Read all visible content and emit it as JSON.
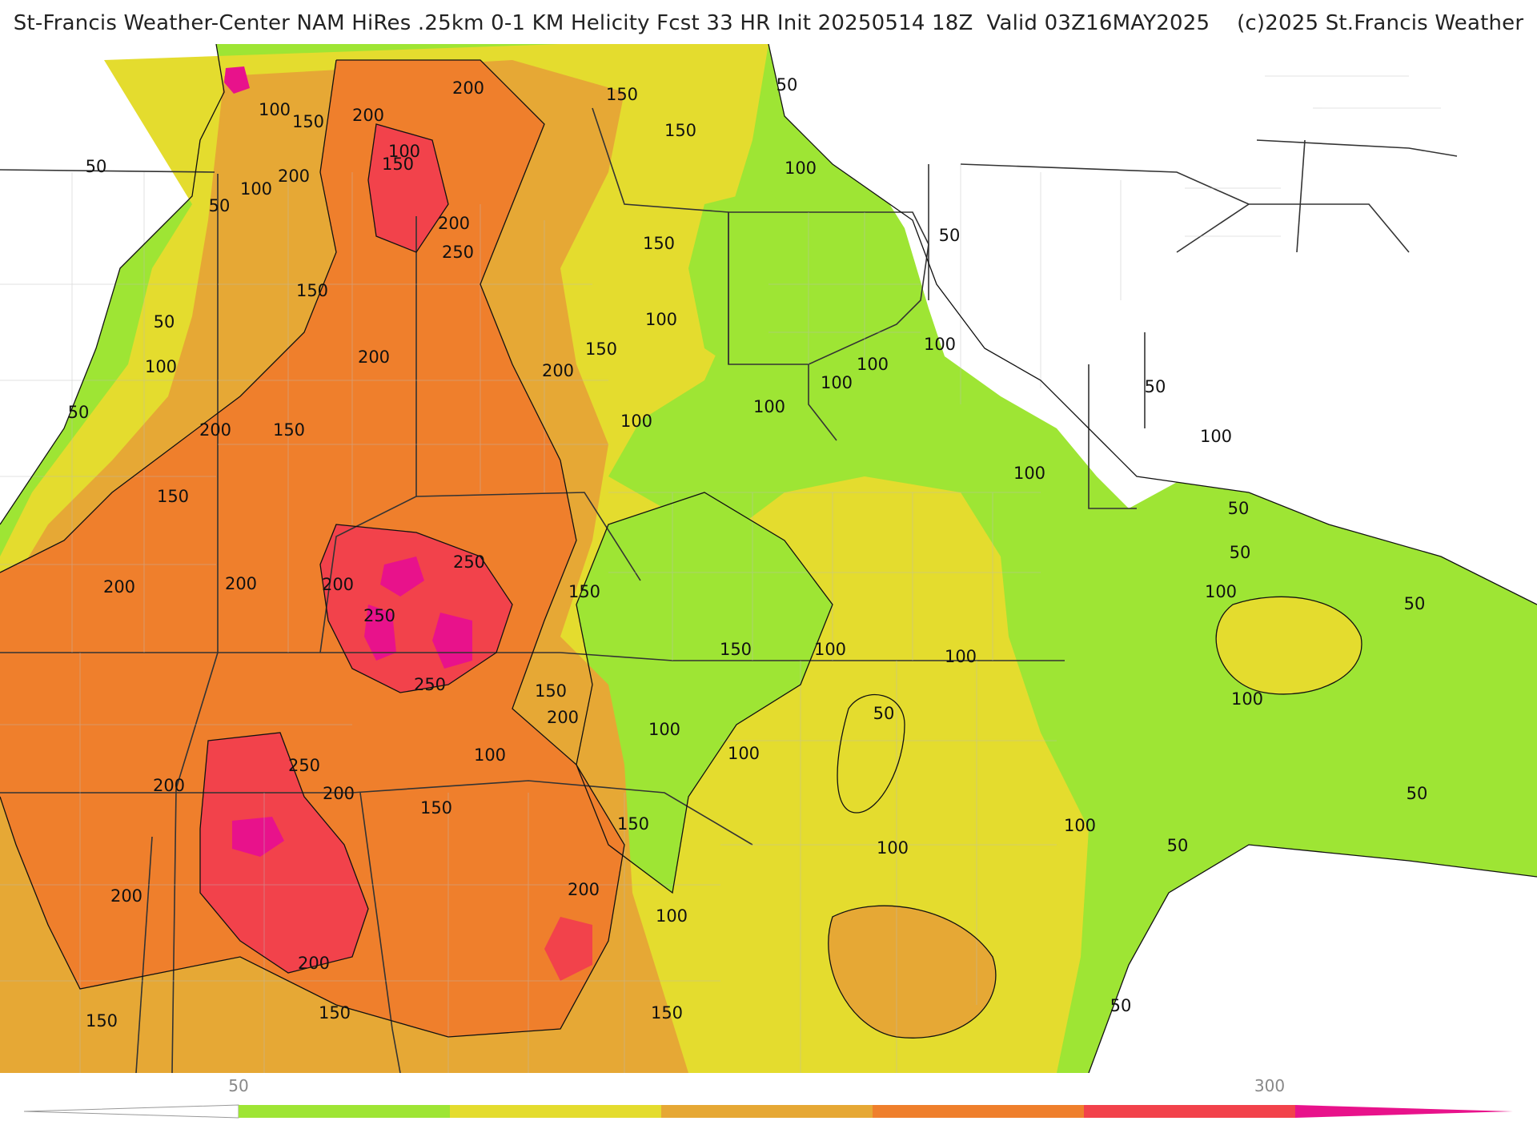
{
  "title": "St-Francis Weather-Center NAM HiRes .25km 0-1 KM Helicity Fcst 33 HR Init 20250514 18Z  Valid 03Z16MAY2025    (c)2025 St.Francis Weather",
  "colors": {
    "c50": "#9ee534",
    "c100": "#e4dc2e",
    "c150": "#e6a835",
    "c200": "#ef7f2c",
    "c250": "#f2424b",
    "c300": "#e8128b",
    "contour": "#111111",
    "border": "#333333",
    "county": "#bbbbbb"
  },
  "contour_labels": [
    {
      "text": "200"
    },
    {
      "text": "150"
    },
    {
      "text": "150"
    },
    {
      "text": "50"
    },
    {
      "text": "50"
    },
    {
      "text": "100"
    },
    {
      "text": "150"
    },
    {
      "text": "200"
    },
    {
      "text": "100"
    },
    {
      "text": "150"
    },
    {
      "text": "200"
    },
    {
      "text": "100"
    },
    {
      "text": "50"
    },
    {
      "text": "100"
    },
    {
      "text": "200"
    },
    {
      "text": "250"
    },
    {
      "text": "150"
    },
    {
      "text": "50"
    },
    {
      "text": "150"
    },
    {
      "text": "100"
    },
    {
      "text": "50"
    },
    {
      "text": "100"
    },
    {
      "text": "200"
    },
    {
      "text": "150"
    },
    {
      "text": "200"
    },
    {
      "text": "50"
    },
    {
      "text": "100"
    },
    {
      "text": "200"
    },
    {
      "text": "150"
    },
    {
      "text": "100"
    },
    {
      "text": "100"
    },
    {
      "text": "100"
    },
    {
      "text": "100"
    },
    {
      "text": "50"
    },
    {
      "text": "100"
    },
    {
      "text": "150"
    },
    {
      "text": "250"
    },
    {
      "text": "50"
    },
    {
      "text": "200"
    },
    {
      "text": "200"
    },
    {
      "text": "150"
    },
    {
      "text": "100"
    },
    {
      "text": "50"
    },
    {
      "text": "100"
    },
    {
      "text": "50"
    },
    {
      "text": "200"
    },
    {
      "text": "250"
    },
    {
      "text": "150"
    },
    {
      "text": "250"
    },
    {
      "text": "100"
    },
    {
      "text": "100"
    },
    {
      "text": "150"
    },
    {
      "text": "200"
    },
    {
      "text": "100"
    },
    {
      "text": "100"
    },
    {
      "text": "50"
    },
    {
      "text": "100"
    },
    {
      "text": "200"
    },
    {
      "text": "250"
    },
    {
      "text": "200"
    },
    {
      "text": "100"
    },
    {
      "text": "150"
    },
    {
      "text": "150"
    },
    {
      "text": "100"
    },
    {
      "text": "100"
    },
    {
      "text": "50"
    },
    {
      "text": "50"
    },
    {
      "text": "200"
    },
    {
      "text": "200"
    },
    {
      "text": "100"
    },
    {
      "text": "200"
    },
    {
      "text": "150"
    },
    {
      "text": "150"
    },
    {
      "text": "150"
    },
    {
      "text": "50"
    }
  ],
  "colorbar": {
    "ticks": [
      {
        "label": "50"
      },
      {
        "label": "300"
      }
    ]
  }
}
